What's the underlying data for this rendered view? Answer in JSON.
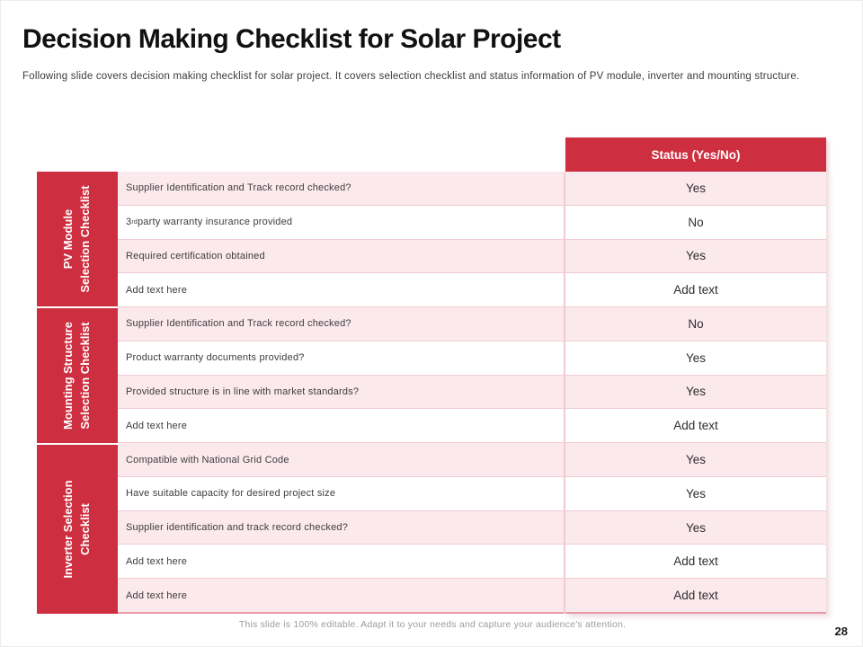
{
  "slide": {
    "title": "Decision Making Checklist for Solar Project",
    "subtitle": "Following slide covers decision making checklist for solar project. It covers selection checklist and status information of PV module, inverter and mounting structure.",
    "footer": "This slide is 100% editable. Adapt it to your needs and capture your audience's attention.",
    "page_number": "28"
  },
  "colors": {
    "accent_red": "#ce2f40",
    "row_pink": "#fbe9ed",
    "row_white": "#ffffff",
    "header_text": "#ffffff",
    "body_text": "#3d3d3d",
    "footer_gray": "#9c9c9c"
  },
  "table": {
    "status_header": "Status (Yes/No)",
    "sections": [
      {
        "line1": "PV Module",
        "line2": "Selection Checklist"
      },
      {
        "line1": "Mounting Structure",
        "line2": "Selection Checklist"
      },
      {
        "line1": "Inverter Selection",
        "line2": "Checklist"
      }
    ],
    "rows": [
      {
        "text": "Supplier Identification and Track record checked?",
        "status": "Yes"
      },
      {
        "pre": "3",
        "sup": "rd",
        "post": " party warranty insurance provided",
        "status": "No"
      },
      {
        "text": "Required certification obtained",
        "status": "Yes"
      },
      {
        "text": "Add text here",
        "status": "Add text"
      },
      {
        "text": "Supplier Identification and Track record checked?",
        "status": "No"
      },
      {
        "text": "Product warranty documents provided?",
        "status": "Yes"
      },
      {
        "text": "Provided structure is in line with market standards?",
        "status": "Yes"
      },
      {
        "text": "Add text here",
        "status": "Add text"
      },
      {
        "text": "Compatible with National Grid Code",
        "status": "Yes"
      },
      {
        "text": "Have suitable capacity for desired project size",
        "status": "Yes"
      },
      {
        "text": "Supplier identification and track record checked?",
        "status": "Yes"
      },
      {
        "text": "Add text here",
        "status": "Add text"
      },
      {
        "text": "Add text here",
        "status": "Add text"
      }
    ]
  }
}
